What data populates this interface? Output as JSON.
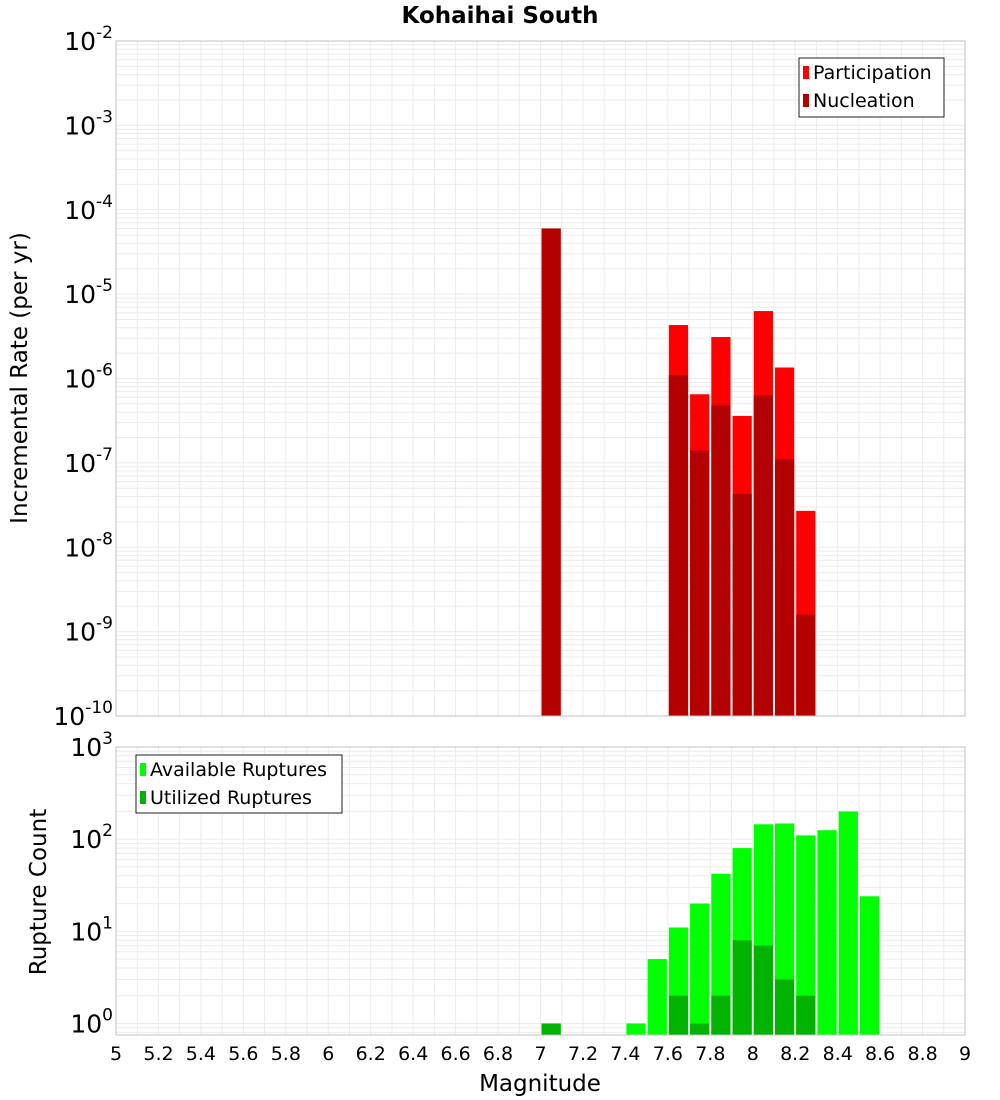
{
  "chart_data": [
    {
      "type": "bar",
      "title": "Kohaihai South",
      "xlabel": "",
      "ylabel": "Incremental Rate (per yr)",
      "yscale": "log",
      "ylim": [
        1e-10,
        0.01
      ],
      "xlim": [
        5,
        9
      ],
      "grid": true,
      "legend_position": "top-right",
      "y_ticks": [
        {
          "base": "10",
          "exp": "-2"
        },
        {
          "base": "10",
          "exp": "-3"
        },
        {
          "base": "10",
          "exp": "-4"
        },
        {
          "base": "10",
          "exp": "-5"
        },
        {
          "base": "10",
          "exp": "-6"
        },
        {
          "base": "10",
          "exp": "-7"
        },
        {
          "base": "10",
          "exp": "-8"
        },
        {
          "base": "10",
          "exp": "-9"
        },
        {
          "base": "10",
          "exp": "-10"
        }
      ],
      "series": [
        {
          "name": "Participation",
          "color": "#ff0000",
          "x": [
            7.05,
            7.65,
            7.75,
            7.85,
            7.95,
            8.05,
            8.15,
            8.25
          ],
          "values": [
            6e-05,
            4.3e-06,
            6.5e-07,
            3.1e-06,
            3.6e-07,
            6.3e-06,
            1.35e-06,
            2.7e-08
          ]
        },
        {
          "name": "Nucleation",
          "color": "#b30000",
          "x": [
            7.05,
            7.65,
            7.75,
            7.85,
            7.95,
            8.05,
            8.15,
            8.25
          ],
          "values": [
            6e-05,
            1.1e-06,
            1.4e-07,
            4.8e-07,
            4.3e-08,
            6.3e-07,
            1.1e-07,
            1.6e-09
          ]
        }
      ]
    },
    {
      "type": "bar",
      "xlabel": "Magnitude",
      "ylabel": "Rupture Count",
      "yscale": "log",
      "ylim": [
        0.75,
        1000
      ],
      "xlim": [
        5,
        9
      ],
      "grid": true,
      "legend_position": "top-left",
      "y_ticks": [
        {
          "base": "10",
          "exp": "3"
        },
        {
          "base": "10",
          "exp": "2"
        },
        {
          "base": "10",
          "exp": "1"
        },
        {
          "base": "10",
          "exp": "0"
        }
      ],
      "x_tick_labels": [
        "5",
        "5.2",
        "5.4",
        "5.6",
        "5.8",
        "6",
        "6.2",
        "6.4",
        "6.6",
        "6.8",
        "7",
        "7.2",
        "7.4",
        "7.6",
        "7.8",
        "8",
        "8.2",
        "8.4",
        "8.6",
        "8.8",
        "9"
      ],
      "series": [
        {
          "name": "Available Ruptures",
          "color": "#00ff00",
          "x": [
            7.05,
            7.45,
            7.55,
            7.65,
            7.75,
            7.85,
            7.95,
            8.05,
            8.15,
            8.25,
            8.35,
            8.45,
            8.55
          ],
          "values": [
            1,
            1,
            5,
            11,
            20,
            42,
            80,
            145,
            148,
            110,
            125,
            200,
            24
          ]
        },
        {
          "name": "Utilized Ruptures",
          "color": "#00b300",
          "x": [
            7.05,
            7.65,
            7.75,
            7.85,
            7.95,
            8.05,
            8.15,
            8.25
          ],
          "values": [
            1,
            2,
            1,
            2,
            8,
            7,
            3,
            2
          ]
        }
      ]
    }
  ]
}
